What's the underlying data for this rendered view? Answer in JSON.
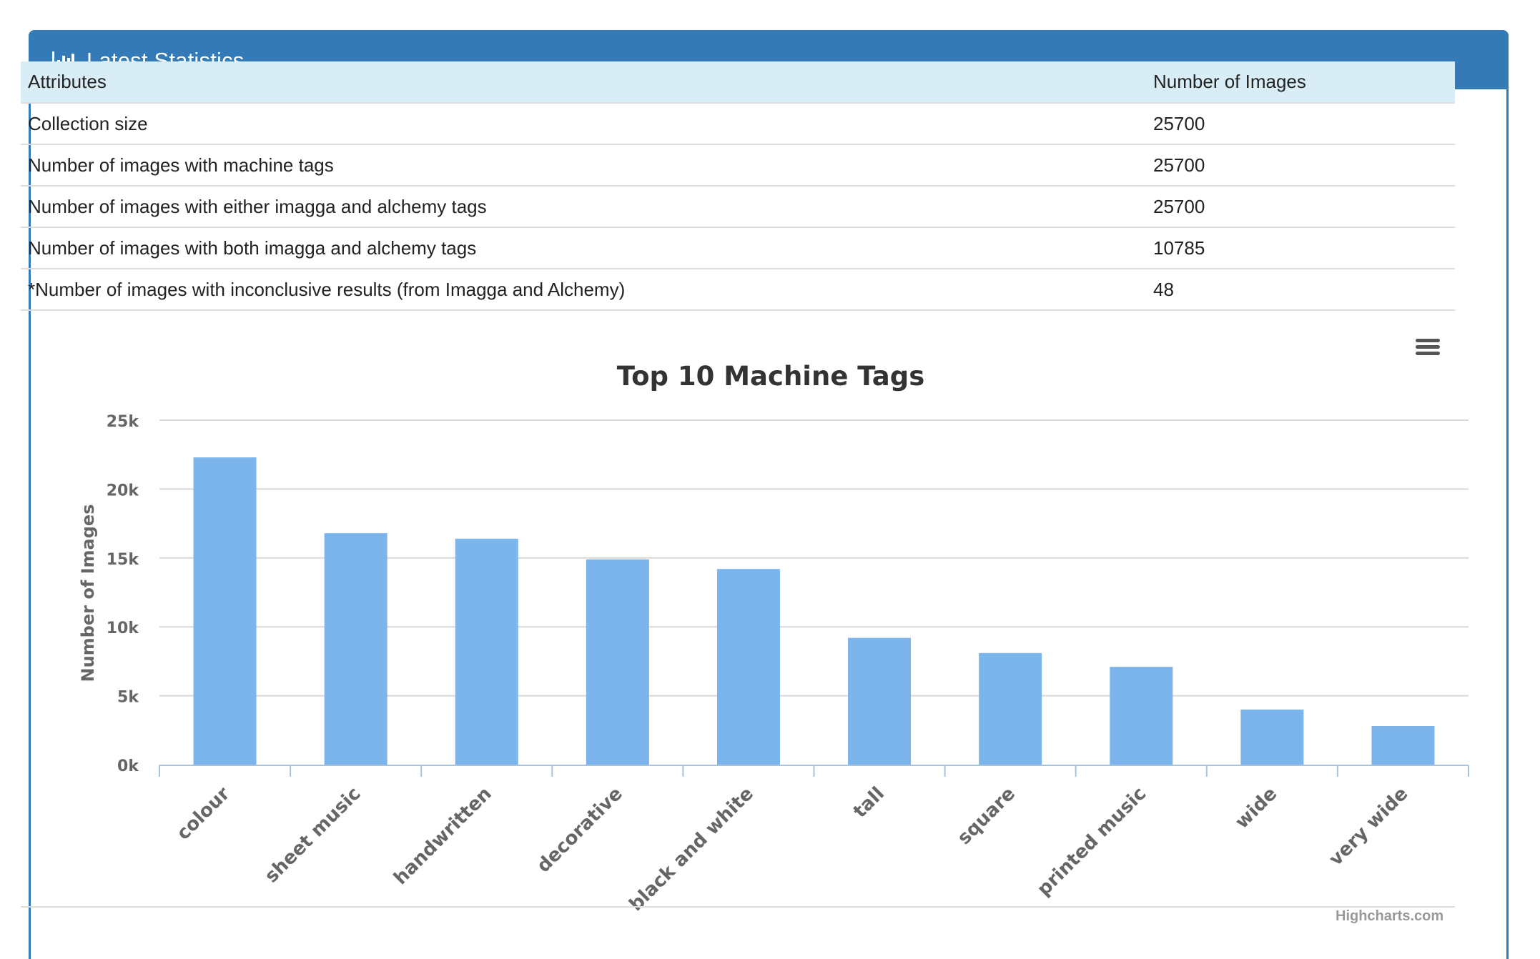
{
  "panel": {
    "title": "Latest Statistics",
    "icon": "bar-chart-icon"
  },
  "table": {
    "headers": [
      "Attributes",
      "Number of Images"
    ],
    "rows": [
      [
        "Collection size",
        "25700"
      ],
      [
        "Number of images with machine tags",
        "25700"
      ],
      [
        "Number of images with either imagga and alchemy tags",
        "25700"
      ],
      [
        "Number of images with both imagga and alchemy tags",
        "10785"
      ],
      [
        "*Number of images with inconclusive results (from Imagga and Alchemy)",
        "48"
      ]
    ]
  },
  "chart_data": {
    "type": "bar",
    "title": "Top 10 Machine Tags",
    "xlabel": "",
    "ylabel": "Number of Images",
    "categories": [
      "colour",
      "sheet music",
      "handwritten",
      "decorative",
      "black and white",
      "tall",
      "square",
      "printed music",
      "wide",
      "very wide"
    ],
    "values": [
      22300,
      16800,
      16400,
      14900,
      14200,
      9200,
      8100,
      7100,
      4000,
      2800
    ],
    "ylim": [
      0,
      25000
    ],
    "yticks": [
      0,
      5000,
      10000,
      15000,
      20000,
      25000
    ],
    "ytick_labels": [
      "0k",
      "5k",
      "10k",
      "15k",
      "20k",
      "25k"
    ],
    "grid": true,
    "legend": "none",
    "bar_color": "#7cb5ec",
    "credits": "Highcharts.com",
    "menu_icon": "hamburger-menu-icon"
  },
  "colors": {
    "panel_primary": "#337ab7",
    "table_header_bg": "#d9edf7",
    "bar": "#7cb5ec"
  }
}
